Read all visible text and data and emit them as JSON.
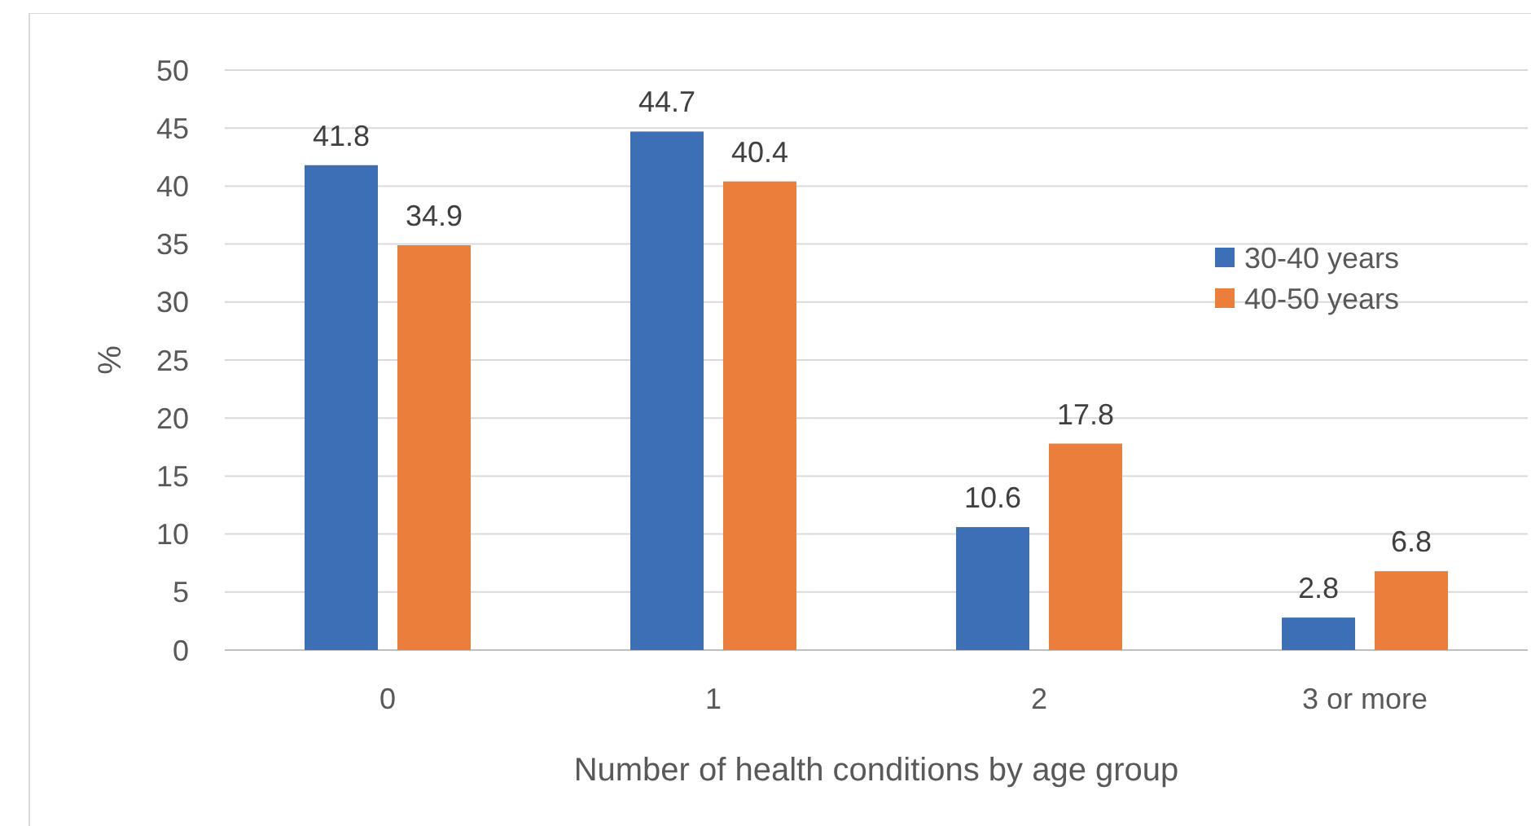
{
  "chart_data": {
    "type": "bar",
    "categories": [
      "0",
      "1",
      "2",
      "3 or more"
    ],
    "series": [
      {
        "name": "30-40 years",
        "color": "#3d6fb6",
        "values": [
          41.8,
          44.7,
          10.6,
          2.8
        ]
      },
      {
        "name": "40-50 years",
        "color": "#eb7e3b",
        "values": [
          34.9,
          40.4,
          17.8,
          6.8
        ]
      }
    ],
    "xlabel": "Number of health conditions by age group",
    "ylabel": "%",
    "ylim": [
      0,
      50
    ],
    "yticks": [
      0,
      5,
      10,
      15,
      20,
      25,
      30,
      35,
      40,
      45,
      50
    ],
    "grid": "y",
    "legend": "right",
    "data_labels": true
  }
}
